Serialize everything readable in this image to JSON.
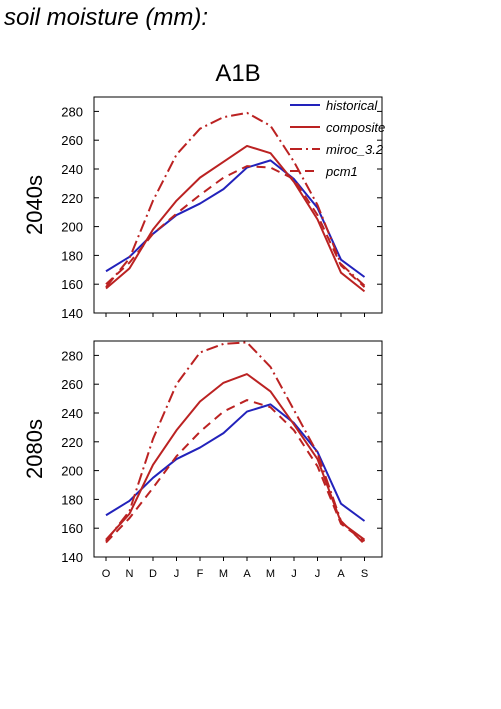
{
  "title": "soil moisture (mm):",
  "chart_data": {
    "type": "line",
    "scenario": "A1B",
    "categories": [
      "O",
      "N",
      "D",
      "J",
      "F",
      "M",
      "A",
      "M",
      "J",
      "J",
      "A",
      "S"
    ],
    "ylim": [
      140,
      290
    ],
    "yticks": [
      140,
      160,
      180,
      200,
      220,
      240,
      260,
      280
    ],
    "legend": {
      "placement": "top-right"
    },
    "styles": [
      {
        "color": "#2222bb",
        "dash": ""
      },
      {
        "color": "#bb2222",
        "dash": ""
      },
      {
        "color": "#bb2222",
        "dash": "12,4,2,4"
      },
      {
        "color": "#bb2222",
        "dash": "9,6"
      }
    ],
    "panels": [
      {
        "label": "2040s",
        "series": [
          {
            "name": "historical",
            "values": [
              169,
              179,
              195,
              208,
              216,
              226,
              241,
              246,
              233,
              213,
              177,
              165
            ]
          },
          {
            "name": "composite",
            "values": [
              157,
              171,
              198,
              218,
              234,
              245,
              256,
              251,
              231,
              205,
              168,
              155
            ]
          },
          {
            "name": "miroc_3.2",
            "values": [
              158,
              178,
              218,
              250,
              268,
              276,
              279,
              270,
              245,
              215,
              174,
              159
            ]
          },
          {
            "name": "pcm1",
            "values": [
              160,
              175,
              195,
              209,
              222,
              234,
              242,
              241,
              233,
              208,
              173,
              158
            ]
          }
        ]
      },
      {
        "label": "2080s",
        "series": [
          {
            "name": "historical",
            "values": [
              169,
              179,
              195,
              208,
              216,
              226,
              241,
              246,
              233,
              213,
              177,
              165
            ]
          },
          {
            "name": "composite",
            "values": [
              152,
              170,
              204,
              228,
              248,
              261,
              267,
              255,
              232,
              208,
              164,
              152
            ]
          },
          {
            "name": "miroc_3.2",
            "values": [
              151,
              172,
              222,
              260,
              282,
              288,
              289,
              272,
              242,
              212,
              165,
              149
            ]
          },
          {
            "name": "pcm1",
            "values": [
              150,
              167,
              188,
              210,
              227,
              241,
              249,
              244,
              228,
              203,
              163,
              151
            ]
          }
        ]
      }
    ]
  }
}
